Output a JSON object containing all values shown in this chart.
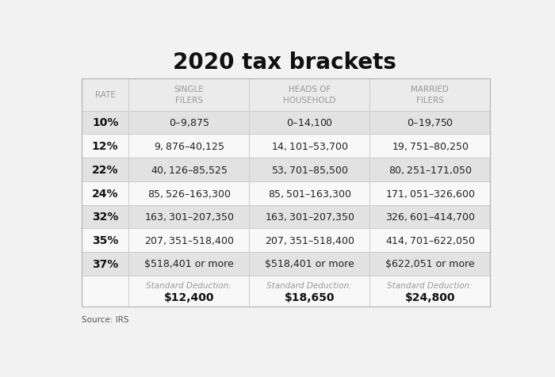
{
  "title": "2020 tax brackets",
  "title_fontsize": 20,
  "background_color": "#f2f2f2",
  "col_header_color": "#999999",
  "rates": [
    "10%",
    "12%",
    "22%",
    "24%",
    "32%",
    "35%",
    "37%"
  ],
  "single_filers": [
    "$0–$9,875",
    "$9,876–$40,125",
    "$40,126–$85,525",
    "$85,526–$163,300",
    "$163,301–$207,350",
    "$207,351–$518,400",
    "$518,401 or more"
  ],
  "heads_household": [
    "$0–$14,100",
    "$14,101–$53,700",
    "$53,701–$85,500",
    "$85,501–$163,300",
    "$163,301–$207,350",
    "$207,351–$518,400",
    "$518,401 or more"
  ],
  "married_filers": [
    "$0–$19,750",
    "$19,751–$80,250",
    "$80,251–$171,050",
    "$171,051–$326,600",
    "$326,601–$414,700",
    "$414,701–$622,050",
    "$622,051 or more"
  ],
  "std_deductions": [
    "$12,400",
    "$18,650",
    "$24,800"
  ],
  "source": "Source: IRS",
  "row_colors": [
    "#ebebeb",
    "#e0e0e0",
    "#f5f5f5",
    "#e0e0e0",
    "#f5f5f5",
    "#e0e0e0",
    "#f5f5f5",
    "#e0e0e0",
    "#f5f5f5"
  ]
}
